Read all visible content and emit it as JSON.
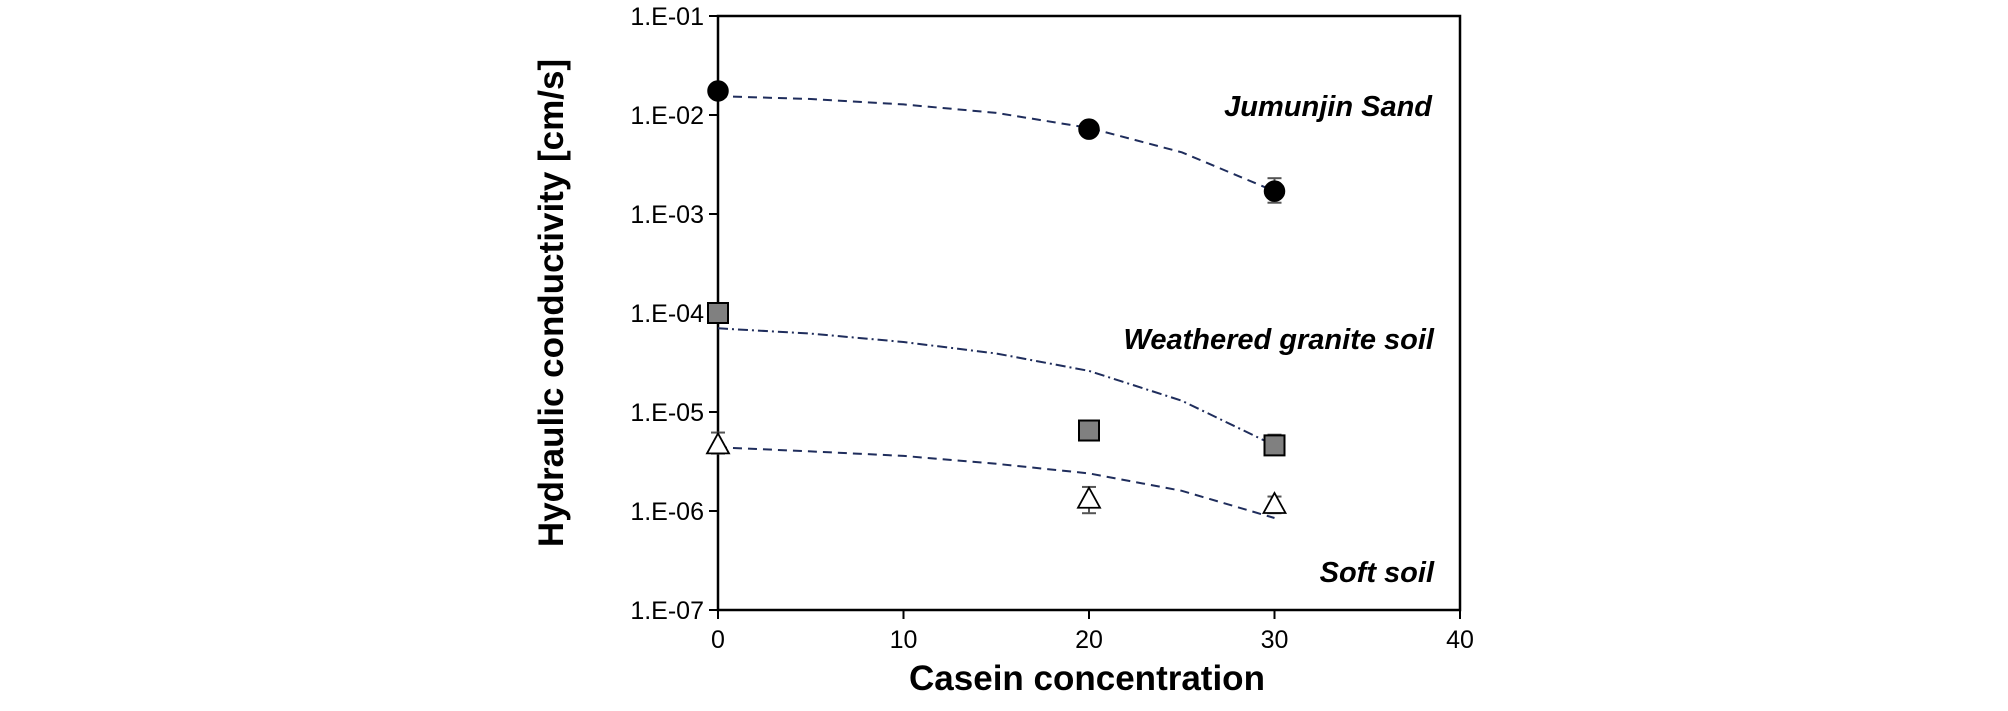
{
  "chart_data": {
    "type": "scatter",
    "xlabel": "Casein concentration",
    "ylabel": "Hydraulic conductivity [cm/s]",
    "xlim": [
      0,
      40
    ],
    "ylim": [
      1e-07,
      0.1
    ],
    "y_scale": "log",
    "x_ticks": [
      0,
      10,
      20,
      30,
      40
    ],
    "x_tick_labels": [
      "0",
      "10",
      "20",
      "30",
      "40"
    ],
    "y_ticks": [
      0.1,
      0.01,
      0.001,
      0.0001,
      1e-05,
      1e-06,
      1e-07
    ],
    "y_tick_labels": [
      "1.E-01",
      "1.E-02",
      "1.E-03",
      "1.E-04",
      "1.E-05",
      "1.E-06",
      "1.E-07"
    ],
    "grid": false,
    "legend": "none",
    "series": [
      {
        "label": "Jumunjin Sand",
        "marker": "circle",
        "marker_fill": "#000000",
        "line_color": "#1f2d5c",
        "line_style": "dashed",
        "x": [
          0,
          20,
          30
        ],
        "y": [
          0.0175,
          0.0072,
          0.0017
        ],
        "y_err_low": [
          0.0175,
          0.0072,
          0.0013
        ],
        "y_err_high": [
          0.0175,
          0.0072,
          0.0023
        ],
        "trend_x": [
          0,
          5,
          10,
          15,
          20,
          25,
          30
        ],
        "trend_y": [
          0.0155,
          0.0145,
          0.0128,
          0.0105,
          0.0074,
          0.0042,
          0.0017
        ]
      },
      {
        "label": "Weathered granite soil",
        "marker": "square",
        "marker_fill": "#808080",
        "line_color": "#1f2d5c",
        "line_style": "dash-dot",
        "x": [
          0,
          20,
          30
        ],
        "y": [
          0.0001,
          6.5e-06,
          4.6e-06
        ],
        "y_err_low": [
          0.0001,
          6.5e-06,
          3.9e-06
        ],
        "y_err_high": [
          0.0001,
          6.5e-06,
          5.9e-06
        ],
        "trend_x": [
          0,
          5,
          10,
          15,
          20,
          25,
          30
        ],
        "trend_y": [
          7e-05,
          6.2e-05,
          5.1e-05,
          3.9e-05,
          2.6e-05,
          1.3e-05,
          4.6e-06
        ]
      },
      {
        "label": "Soft soil",
        "marker": "triangle-open",
        "marker_fill": "#ffffff",
        "line_color": "#1f2d5c",
        "line_style": "dashed",
        "x": [
          0,
          20,
          30
        ],
        "y": [
          4.6e-06,
          1.3e-06,
          1.15e-06
        ],
        "y_err_low": [
          3.8e-06,
          9.5e-07,
          9.5e-07
        ],
        "y_err_high": [
          6.2e-06,
          1.75e-06,
          1.4e-06
        ],
        "trend_x": [
          0,
          5,
          10,
          15,
          20,
          25,
          30
        ],
        "trend_y": [
          4.4e-06,
          4e-06,
          3.6e-06,
          3e-06,
          2.4e-06,
          1.6e-06,
          8.5e-07
        ]
      }
    ]
  }
}
